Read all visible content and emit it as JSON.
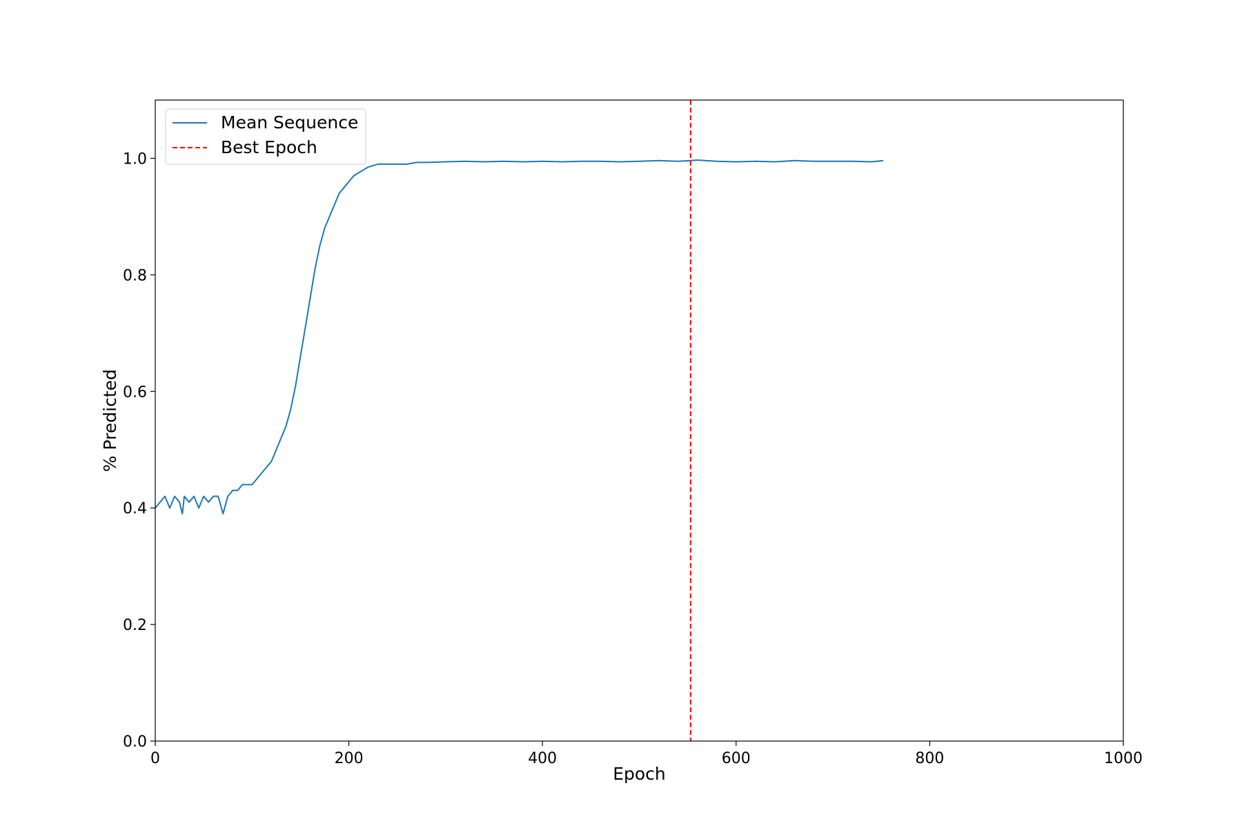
{
  "chart_data": {
    "type": "line",
    "title": "",
    "xlabel": "Epoch",
    "ylabel": "% Predicted",
    "xlim": [
      0,
      1000
    ],
    "ylim": [
      0,
      1.1
    ],
    "x_ticks": [
      "0",
      "200",
      "400",
      "600",
      "800",
      "1000"
    ],
    "y_ticks": [
      "0.0",
      "0.2",
      "0.4",
      "0.6",
      "0.8",
      "1.0"
    ],
    "grid": false,
    "legend_position": "top-left",
    "series": [
      {
        "name": "Mean Sequence",
        "color": "#1f77b4",
        "style": "solid",
        "x": [
          0,
          5,
          10,
          15,
          20,
          25,
          28,
          30,
          35,
          40,
          45,
          50,
          55,
          60,
          65,
          70,
          75,
          80,
          85,
          90,
          95,
          100,
          105,
          110,
          115,
          120,
          125,
          130,
          135,
          140,
          145,
          150,
          155,
          160,
          165,
          170,
          175,
          180,
          185,
          190,
          195,
          200,
          205,
          210,
          215,
          220,
          230,
          240,
          250,
          260,
          270,
          280,
          300,
          320,
          340,
          360,
          380,
          400,
          420,
          440,
          460,
          480,
          500,
          520,
          540,
          553,
          560,
          580,
          600,
          620,
          640,
          660,
          680,
          700,
          720,
          740,
          752
        ],
        "y": [
          0.4,
          0.41,
          0.42,
          0.4,
          0.42,
          0.41,
          0.39,
          0.42,
          0.41,
          0.42,
          0.4,
          0.42,
          0.41,
          0.42,
          0.42,
          0.39,
          0.42,
          0.43,
          0.43,
          0.44,
          0.44,
          0.44,
          0.45,
          0.46,
          0.47,
          0.48,
          0.5,
          0.52,
          0.54,
          0.57,
          0.61,
          0.66,
          0.71,
          0.76,
          0.81,
          0.85,
          0.88,
          0.9,
          0.92,
          0.94,
          0.95,
          0.96,
          0.97,
          0.975,
          0.98,
          0.985,
          0.99,
          0.99,
          0.99,
          0.99,
          0.993,
          0.993,
          0.994,
          0.995,
          0.994,
          0.995,
          0.994,
          0.995,
          0.994,
          0.995,
          0.995,
          0.994,
          0.995,
          0.996,
          0.995,
          0.996,
          0.997,
          0.995,
          0.994,
          0.995,
          0.994,
          0.996,
          0.995,
          0.995,
          0.995,
          0.994,
          0.996
        ]
      },
      {
        "name": "Best Epoch",
        "color": "#ff0000",
        "style": "dashed",
        "x_value": 553
      }
    ]
  }
}
